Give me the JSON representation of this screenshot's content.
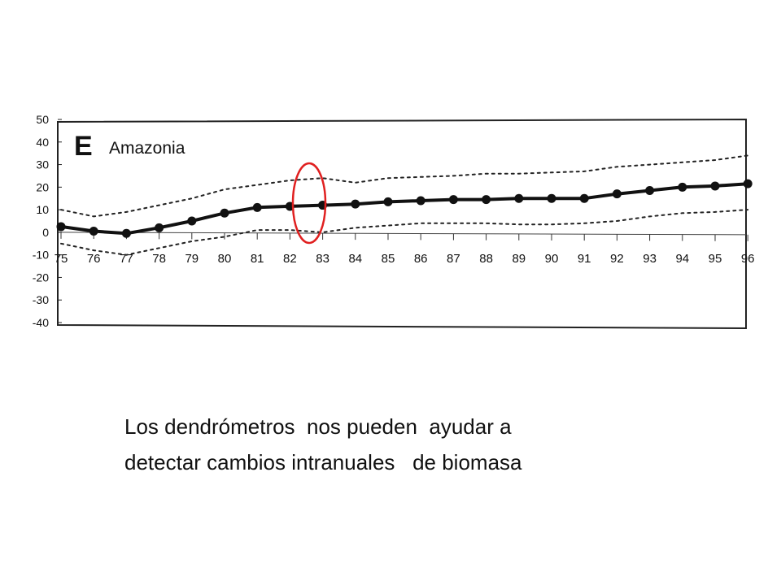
{
  "caption": {
    "line1": "Los dendrómetros  nos pueden  ayudar a",
    "line2": "detectar cambios intranuales   de biomasa"
  },
  "chart_data": {
    "type": "line",
    "panel_letter": "E",
    "title": "Amazonia",
    "xlabel": "",
    "ylabel": "",
    "x": [
      "75",
      "76",
      "77",
      "78",
      "79",
      "80",
      "81",
      "82",
      "83",
      "84",
      "85",
      "86",
      "87",
      "88",
      "89",
      "90",
      "91",
      "92",
      "93",
      "94",
      "95",
      "96"
    ],
    "ylim": [
      -40,
      50
    ],
    "yticks": [
      "50",
      "40",
      "30",
      "20",
      "10",
      "0",
      "-10",
      "-20",
      "-30",
      "-40"
    ],
    "grid": false,
    "series": [
      {
        "style": "solid-markers",
        "values": [
          2.5,
          0.5,
          -0.5,
          2,
          5,
          8.5,
          11,
          11.5,
          12,
          12.5,
          13.5,
          14,
          14.5,
          14.5,
          15,
          15,
          15,
          17,
          18.5,
          20,
          20.5,
          21.5
        ]
      },
      {
        "style": "dotted-upper",
        "values": [
          10,
          7,
          9,
          12,
          15,
          19,
          21,
          23,
          24,
          22,
          24,
          24.5,
          25,
          26,
          26,
          26.5,
          27,
          29,
          30,
          31,
          32,
          34
        ]
      },
      {
        "style": "dotted-lower",
        "values": [
          -5,
          -8,
          -10,
          -7,
          -4,
          -2,
          1,
          1,
          0,
          2,
          3,
          4,
          4,
          4,
          3.5,
          3.5,
          4,
          5,
          7,
          8.5,
          9,
          10
        ]
      }
    ],
    "highlight": {
      "x": "82-83",
      "color": "#e02020"
    }
  }
}
